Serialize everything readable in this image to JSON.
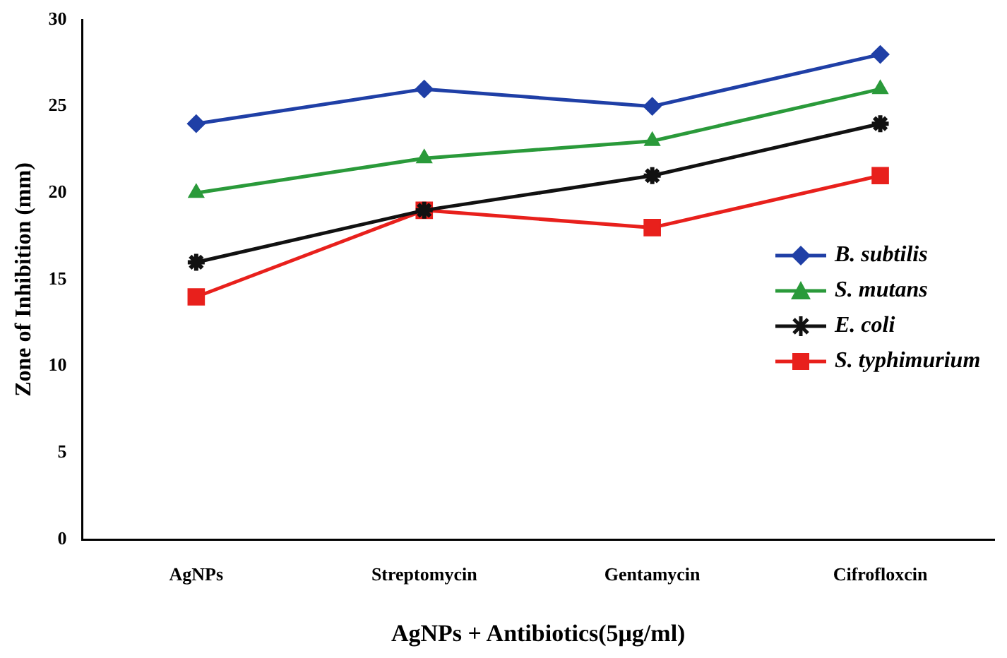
{
  "chart_data": {
    "type": "line",
    "xlabel": "AgNPs + Antibiotics(5μg/ml)",
    "ylabel": "Zone of Inhibition (mm)",
    "categories": [
      "AgNPs",
      "Streptomycin",
      "Gentamycin",
      "Cifrofloxcin"
    ],
    "series": [
      {
        "name": "B. subtilis",
        "color": "#1f3fa6",
        "marker": "diamond",
        "values": [
          24,
          26,
          25,
          28
        ]
      },
      {
        "name": "S. mutans",
        "color": "#2a9a3a",
        "marker": "triangle",
        "values": [
          20,
          22,
          23,
          26
        ]
      },
      {
        "name": "E. coli",
        "color": "#111111",
        "marker": "cross",
        "values": [
          16,
          19,
          21,
          24
        ]
      },
      {
        "name": "S. typhimurium",
        "color": "#e8201c",
        "marker": "square",
        "values": [
          14,
          19,
          18,
          21
        ]
      }
    ],
    "ylim": [
      0,
      30
    ],
    "yticks": [
      0,
      5,
      10,
      15,
      20,
      25,
      30
    ],
    "grid": false,
    "legend": "right",
    "line_style": "solid"
  }
}
